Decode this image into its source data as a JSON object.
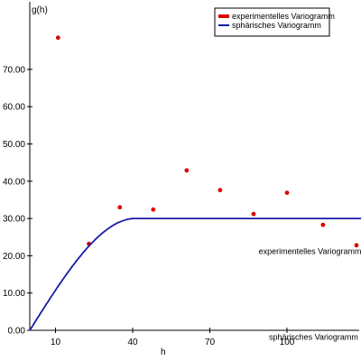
{
  "chart_data": {
    "type": "scatter",
    "xlabel": "h",
    "ylabel": "g(h)",
    "xlim": [
      0,
      120
    ],
    "ylim": [
      0,
      88
    ],
    "x_ticks": [
      {
        "value": 10,
        "label": "10"
      },
      {
        "value": 40,
        "label": "40"
      },
      {
        "value": 70,
        "label": "70"
      },
      {
        "value": 100,
        "label": "100"
      }
    ],
    "y_ticks": [
      {
        "value": 0,
        "label": "0.00"
      },
      {
        "value": 10,
        "label": "10.00"
      },
      {
        "value": 20,
        "label": "20.00"
      },
      {
        "value": 30,
        "label": "30.00"
      },
      {
        "value": 40,
        "label": "40.00"
      },
      {
        "value": 50,
        "label": "50.00"
      },
      {
        "value": 60,
        "label": "60.00"
      },
      {
        "value": 70,
        "label": "70.00"
      }
    ],
    "legend_position": "top-right",
    "series": [
      {
        "name": "experimentelles Variogramm",
        "kind": "points",
        "color": "#dd0000",
        "points": [
          {
            "x": 11,
            "y": 78.5
          },
          {
            "x": 23,
            "y": 23.2
          },
          {
            "x": 35,
            "y": 33.0
          },
          {
            "x": 48,
            "y": 32.4
          },
          {
            "x": 61,
            "y": 42.9
          },
          {
            "x": 74,
            "y": 37.6
          },
          {
            "x": 87,
            "y": 31.2
          },
          {
            "x": 100,
            "y": 36.9
          },
          {
            "x": 114,
            "y": 28.3
          },
          {
            "x": 127,
            "y": 22.8
          }
        ]
      },
      {
        "name": "sphärisches Variogramm",
        "kind": "line",
        "color": "#1a1aa8",
        "model": "spherical",
        "nugget": 0,
        "sill": 30,
        "range": 41,
        "x_max": 130
      }
    ],
    "annotations": [
      {
        "text": "experimentelles Variogramm",
        "x": 89,
        "y": 20.5
      },
      {
        "text": "sphärisches Variogramm",
        "x": 93,
        "y": -2.5
      }
    ]
  }
}
